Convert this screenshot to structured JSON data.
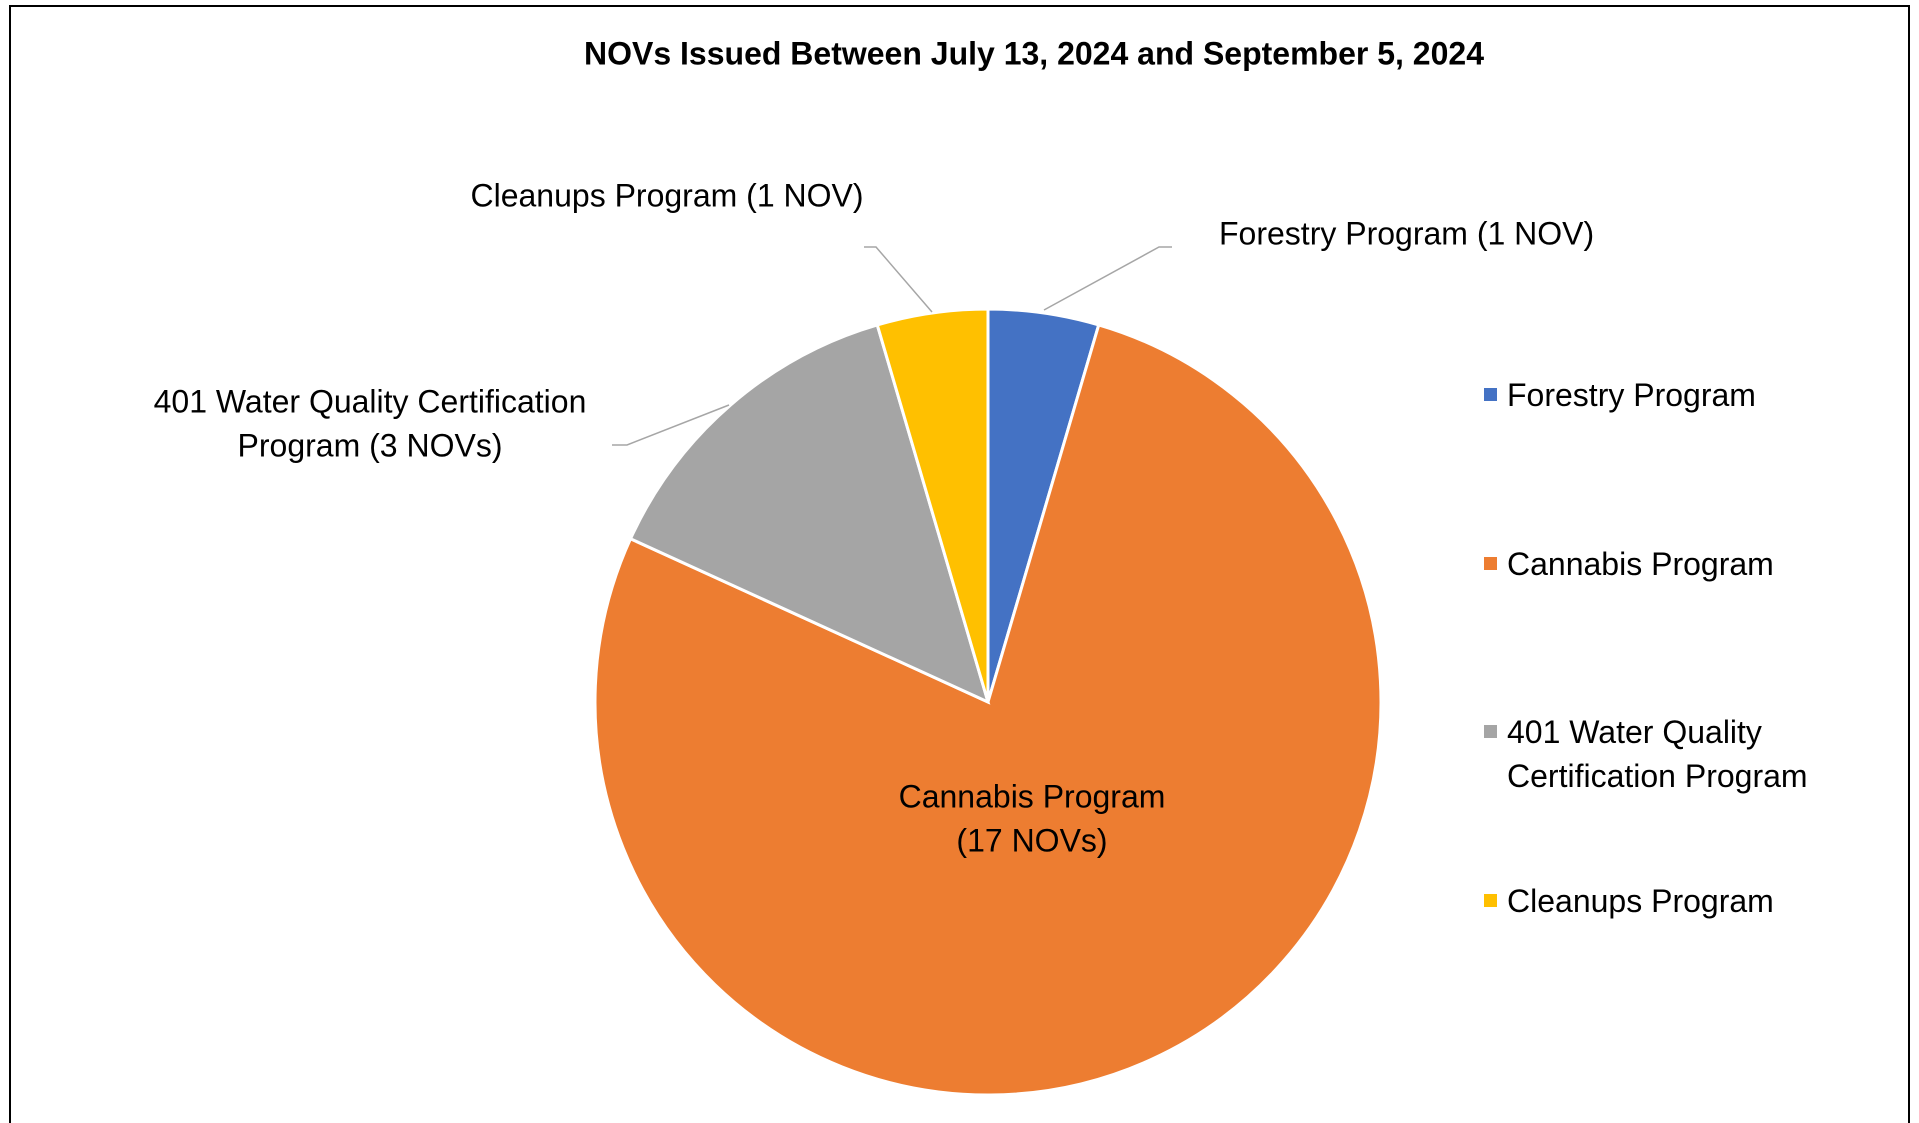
{
  "chart_data": {
    "type": "pie",
    "title": "NOVs Issued Between July 13, 2024 and September 5, 2024",
    "categories": [
      "Forestry Program",
      "Cannabis Program",
      "401 Water Quality Certification Program",
      "Cleanups Program"
    ],
    "values": [
      1,
      17,
      3,
      1
    ],
    "value_labels": [
      [
        "Forestry Program (1 NOV)"
      ],
      [
        "Cannabis Program",
        "(17 NOVs)"
      ],
      [
        "401 Water Quality Certification",
        "Program (3 NOVs)"
      ],
      [
        "Cleanups Program (1 NOV)"
      ]
    ],
    "colors": [
      "#4472c4",
      "#ed7d31",
      "#a5a5a5",
      "#ffc000"
    ],
    "legend": "right"
  }
}
